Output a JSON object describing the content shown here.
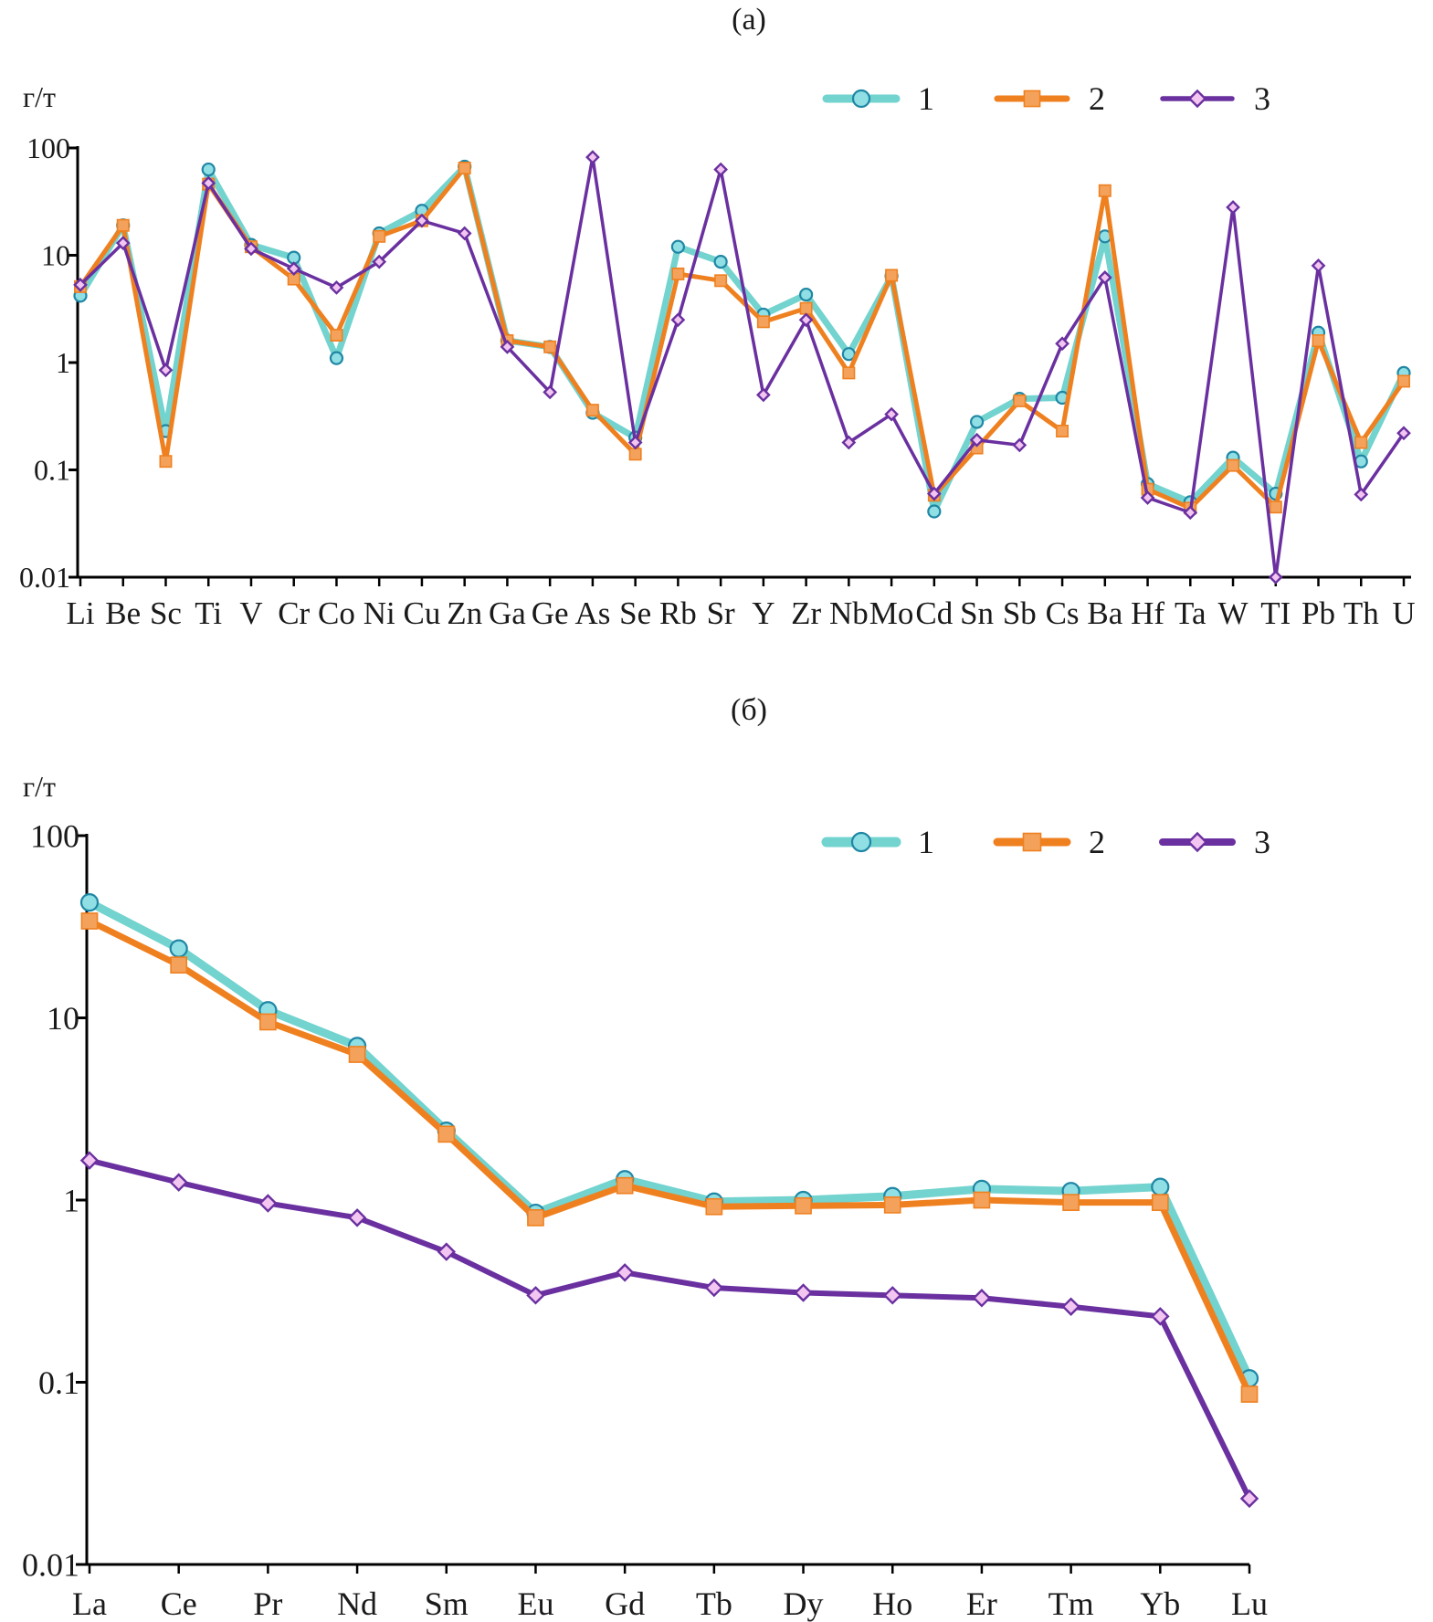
{
  "colors": {
    "s1": "#72d3cf",
    "s1_marker_fill": "#8fdfe4",
    "s1_marker_stroke": "#1f86a4",
    "s2": "#ef8020",
    "s2_marker_fill": "#f4a25b",
    "s3": "#6a30a0",
    "s3_marker_fill": "#f2c6f0",
    "axis": "#000000"
  },
  "chart_data": [
    {
      "panel_label": "(а)",
      "type": "line",
      "yscale": "log",
      "ylabel": "г/т",
      "ylim": [
        0.01,
        100
      ],
      "yticks": [
        "0.01",
        "0.1",
        "1",
        "10",
        "100"
      ],
      "legend": {
        "position": "top-right",
        "entries": [
          "1",
          "2",
          "3"
        ]
      },
      "categories": [
        "Li",
        "Be",
        "Sc",
        "Ti",
        "V",
        "Cr",
        "Co",
        "Ni",
        "Cu",
        "Zn",
        "Ga",
        "Ge",
        "As",
        "Se",
        "Rb",
        "Sr",
        "Y",
        "Zr",
        "Nb",
        "Mo",
        "Cd",
        "Sn",
        "Sb",
        "Cs",
        "Ba",
        "Hf",
        "Ta",
        "W",
        "TI",
        "Pb",
        "Th",
        "U"
      ],
      "series": [
        {
          "name": "1",
          "marker": "circle",
          "values": [
            4.2,
            19,
            0.23,
            63,
            12.5,
            9.5,
            1.1,
            16,
            26,
            67,
            1.6,
            1.4,
            0.34,
            0.2,
            12,
            8.7,
            2.8,
            4.3,
            1.2,
            6.4,
            0.041,
            0.28,
            0.46,
            0.47,
            15,
            0.074,
            0.05,
            0.13,
            0.06,
            1.9,
            0.12,
            0.8
          ]
        },
        {
          "name": "2",
          "marker": "square",
          "values": [
            5.1,
            19,
            0.12,
            46,
            12,
            6,
            1.8,
            15,
            21,
            65,
            1.6,
            1.4,
            0.36,
            0.14,
            6.7,
            5.8,
            2.4,
            3.2,
            0.8,
            6.5,
            0.058,
            0.16,
            0.44,
            0.23,
            40,
            0.066,
            0.044,
            0.11,
            0.045,
            1.6,
            0.18,
            0.67
          ]
        },
        {
          "name": "3",
          "marker": "diamond",
          "values": [
            5.3,
            13,
            0.85,
            47,
            11.5,
            7.5,
            5,
            8.7,
            21,
            16,
            1.4,
            0.53,
            82,
            0.18,
            2.5,
            63,
            0.5,
            2.5,
            0.18,
            0.33,
            0.06,
            0.19,
            0.17,
            1.5,
            6.2,
            0.055,
            0.04,
            28,
            0.01,
            8,
            0.059,
            0.22
          ]
        }
      ]
    },
    {
      "panel_label": "(б)",
      "type": "line",
      "yscale": "log",
      "ylabel": "г/т",
      "ylim": [
        0.01,
        100
      ],
      "yticks": [
        "0.01",
        "0.1",
        "1",
        "10",
        "100"
      ],
      "legend": {
        "position": "top-right",
        "entries": [
          "1",
          "2",
          "3"
        ]
      },
      "categories": [
        "La",
        "Ce",
        "Pr",
        "Nd",
        "Sm",
        "Eu",
        "Gd",
        "Tb",
        "Dy",
        "Ho",
        "Er",
        "Tm",
        "Yb",
        "Lu"
      ],
      "series": [
        {
          "name": "1",
          "marker": "circle",
          "values": [
            43,
            24,
            11,
            7,
            2.4,
            0.85,
            1.3,
            0.98,
            1.0,
            1.05,
            1.15,
            1.12,
            1.18,
            0.105
          ]
        },
        {
          "name": "2",
          "marker": "square",
          "values": [
            34,
            19.5,
            9.5,
            6.3,
            2.3,
            0.8,
            1.2,
            0.92,
            0.93,
            0.94,
            1.0,
            0.97,
            0.97,
            0.086
          ]
        },
        {
          "name": "3",
          "marker": "diamond",
          "values": [
            1.65,
            1.25,
            0.96,
            0.8,
            0.52,
            0.3,
            0.4,
            0.33,
            0.31,
            0.3,
            0.29,
            0.26,
            0.23,
            0.023
          ]
        }
      ]
    }
  ]
}
